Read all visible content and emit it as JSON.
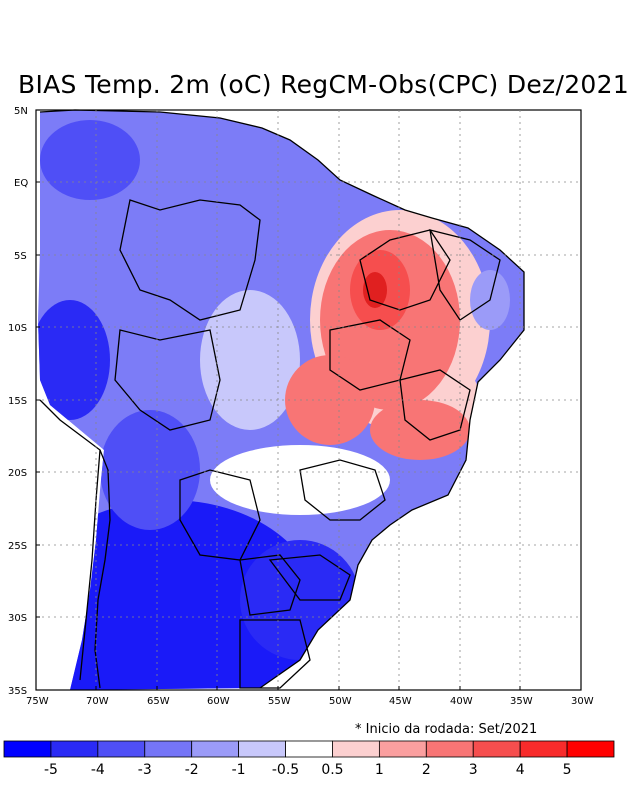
{
  "title": "BIAS Temp. 2m (oC) RegCM-Obs(CPC) Dez/2021",
  "note": "* Inicio da rodada: Set/2021",
  "axes": {
    "lat_labels": [
      "5N",
      "EQ",
      "5S",
      "10S",
      "15S",
      "20S",
      "25S",
      "30S",
      "35S"
    ],
    "lon_labels": [
      "75W",
      "70W",
      "65W",
      "60W",
      "55W",
      "50W",
      "45W",
      "40W",
      "35W",
      "30W"
    ],
    "lat_range": [
      -35,
      5
    ],
    "lon_range": [
      -75,
      -30
    ]
  },
  "colorbar": {
    "colors": [
      "#0000ff",
      "#2a2af5",
      "#4f4ff6",
      "#7575f7",
      "#9b9bf8",
      "#c8c8fb",
      "#ffffff",
      "#fcd0d0",
      "#fa9f9f",
      "#f87575",
      "#f64e4e",
      "#f82b2b",
      "#ff0000"
    ],
    "labels": [
      "-5",
      "-4",
      "-3",
      "-2",
      "-1",
      "-0.5",
      "0.5",
      "1",
      "2",
      "3",
      "4",
      "5"
    ]
  },
  "map": {
    "land_color": "#7c7cf7",
    "ocean_color": "#ffffff"
  }
}
